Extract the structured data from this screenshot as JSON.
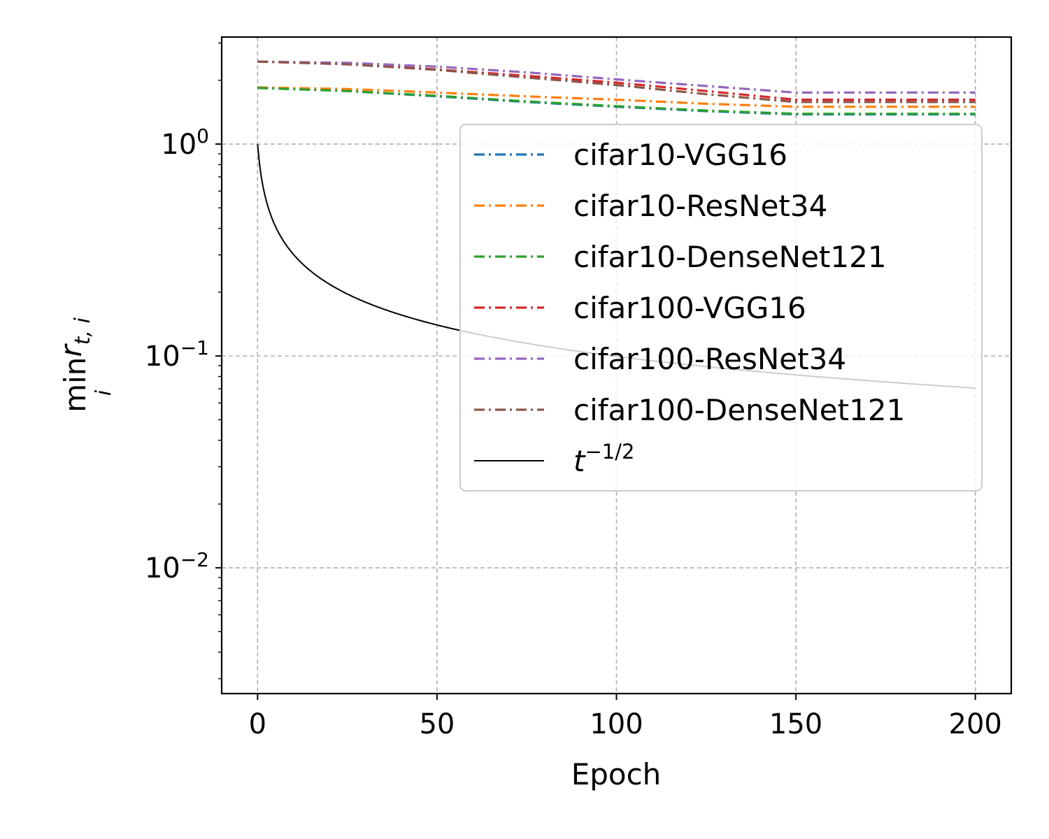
{
  "chart_data": {
    "type": "line",
    "xlabel": "Epoch",
    "ylabel": {
      "main": "min",
      "sub": "i",
      "var": "r",
      "var_sub": "t, i"
    },
    "yscale": "log",
    "xlim": [
      -10,
      210
    ],
    "ylim": [
      0.00255,
      3.2
    ],
    "x_ticks": [
      0,
      50,
      100,
      150,
      200
    ],
    "y_ticks": [
      {
        "value": 1,
        "base": "10",
        "exp": "0"
      },
      {
        "value": 0.1,
        "base": "10",
        "exp": "−1"
      },
      {
        "value": 0.01,
        "base": "10",
        "exp": "−2"
      }
    ],
    "grid": true,
    "legend_position": "upper right",
    "series": [
      {
        "name": "cifar10-VGG16",
        "color": "#1f77b4",
        "style": "dashdot",
        "x": [
          0,
          25,
          50,
          75,
          100,
          125,
          150,
          175,
          200
        ],
        "y": [
          1.85,
          1.78,
          1.68,
          1.58,
          1.5,
          1.43,
          1.38,
          1.38,
          1.38
        ]
      },
      {
        "name": "cifar10-ResNet34",
        "color": "#ff7f0e",
        "style": "dashdot",
        "x": [
          0,
          25,
          50,
          75,
          100,
          125,
          150,
          175,
          200
        ],
        "y": [
          1.85,
          1.82,
          1.75,
          1.68,
          1.62,
          1.55,
          1.5,
          1.5,
          1.5
        ]
      },
      {
        "name": "cifar10-DenseNet121",
        "color": "#2ca02c",
        "style": "dashdot",
        "x": [
          0,
          25,
          50,
          75,
          100,
          125,
          150,
          175,
          200
        ],
        "y": [
          1.84,
          1.78,
          1.69,
          1.59,
          1.51,
          1.44,
          1.39,
          1.39,
          1.39
        ]
      },
      {
        "name": "cifar100-VGG16",
        "color": "#d62728",
        "style": "dashdot",
        "x": [
          0,
          25,
          50,
          75,
          100,
          125,
          150,
          175,
          200
        ],
        "y": [
          2.45,
          2.4,
          2.25,
          2.1,
          1.95,
          1.78,
          1.62,
          1.62,
          1.62
        ]
      },
      {
        "name": "cifar100-ResNet34",
        "color": "#9467bd",
        "style": "dashdot",
        "x": [
          0,
          25,
          50,
          75,
          100,
          125,
          150,
          175,
          200
        ],
        "y": [
          2.45,
          2.42,
          2.32,
          2.18,
          2.02,
          1.88,
          1.75,
          1.75,
          1.75
        ]
      },
      {
        "name": "cifar100-DenseNet121",
        "color": "#8c564b",
        "style": "dashdot",
        "x": [
          0,
          25,
          50,
          75,
          100,
          125,
          150,
          175,
          200
        ],
        "y": [
          2.45,
          2.38,
          2.24,
          2.06,
          1.9,
          1.72,
          1.58,
          1.58,
          1.58
        ]
      },
      {
        "name": "t^{-1/2}",
        "color": "#000000",
        "style": "solid",
        "formula": "t^(-1/2)",
        "x_range": [
          0,
          200
        ]
      }
    ],
    "legend_labels": {
      "t_base": "t",
      "t_exp": "−1/2"
    }
  }
}
